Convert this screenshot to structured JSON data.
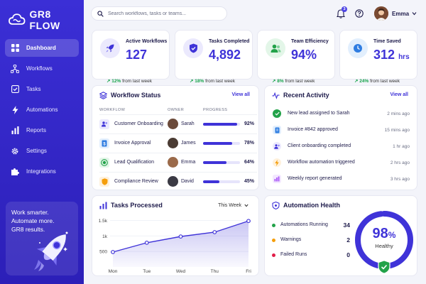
{
  "app": {
    "name": "GR8 FLOW",
    "accent": "#3f33d8"
  },
  "sidebar": {
    "items": [
      {
        "label": "Dashboard",
        "icon": "dashboard-icon",
        "active": true
      },
      {
        "label": "Workflows",
        "icon": "workflow-icon",
        "active": false
      },
      {
        "label": "Tasks",
        "icon": "checkbox-icon",
        "active": false
      },
      {
        "label": "Automations",
        "icon": "lightning-icon",
        "active": false
      },
      {
        "label": "Reports",
        "icon": "bar-chart-icon",
        "active": false
      },
      {
        "label": "Settings",
        "icon": "gear-icon",
        "active": false
      },
      {
        "label": "Integrations",
        "icon": "puzzle-icon",
        "active": false
      }
    ],
    "promo": {
      "line1": "Work smarter.",
      "line2": "Automate more.",
      "line3": "GR8 results."
    }
  },
  "topbar": {
    "search_placeholder": "Search workflows, tasks or teams...",
    "notifications_count": "3",
    "user_name": "Emma"
  },
  "stats": [
    {
      "label": "Active Workflows",
      "value": "127",
      "unit": "",
      "delta": "12%",
      "delta_suffix": "from last week",
      "icon": "rocket-icon",
      "icon_bg": "#ebe9fd",
      "icon_color": "#3f33d8"
    },
    {
      "label": "Tasks Completed",
      "value": "4,892",
      "unit": "",
      "delta": "18%",
      "delta_suffix": "from last week",
      "icon": "shield-check-icon",
      "icon_bg": "#ebe9fd",
      "icon_color": "#3f33d8"
    },
    {
      "label": "Team Efficiency",
      "value": "94%",
      "unit": "",
      "delta": "8%",
      "delta_suffix": "from last week",
      "icon": "team-icon",
      "icon_bg": "#e3f6e8",
      "icon_color": "#22a249"
    },
    {
      "label": "Time Saved",
      "value": "312",
      "unit": "hrs",
      "delta": "24%",
      "delta_suffix": "from last week",
      "icon": "clock-icon",
      "icon_bg": "#e2effd",
      "icon_color": "#2f7de1"
    }
  ],
  "workflow_status": {
    "title": "Workflow Status",
    "view_all": "View all",
    "columns": [
      "WORKFLOW",
      "OWNER",
      "PROGRESS"
    ],
    "rows": [
      {
        "name": "Customer Onboarding",
        "owner": "Sarah",
        "progress": 0.92,
        "pct": "92%",
        "icon_bg": "#ebe9fd",
        "icon_color": "#3f33d8",
        "avatar_color": "#6b4a3a"
      },
      {
        "name": "Invoice Approval",
        "owner": "James",
        "progress": 0.78,
        "pct": "78%",
        "icon_bg": "#e2effd",
        "icon_color": "#2f7de1",
        "avatar_color": "#4a3b33"
      },
      {
        "name": "Lead Qualification",
        "owner": "Emma",
        "progress": 0.64,
        "pct": "64%",
        "icon_bg": "#e3f6e8",
        "icon_color": "#22a249",
        "avatar_color": "#9b6a4a"
      },
      {
        "name": "Compliance Review",
        "owner": "David",
        "progress": 0.45,
        "pct": "45%",
        "icon_bg": "#fff1dc",
        "icon_color": "#f59e0b",
        "avatar_color": "#3b3a44"
      }
    ]
  },
  "recent_activity": {
    "title": "Recent Activity",
    "view_all": "View all",
    "items": [
      {
        "text": "New lead assigned to Sarah",
        "time": "2 mins ago",
        "icon": "check-circle-icon",
        "color": "#22a249",
        "bg": "#22a249"
      },
      {
        "text": "Invoice #842 approved",
        "time": "15 mins ago",
        "icon": "document-icon",
        "color": "#2f7de1",
        "bg": "#e2effd"
      },
      {
        "text": "Client onboarding completed",
        "time": "1 hr ago",
        "icon": "users-icon",
        "color": "#3f33d8",
        "bg": "#ebe9fd"
      },
      {
        "text": "Workflow automation triggered",
        "time": "2 hrs ago",
        "icon": "lightning-icon",
        "color": "#f59e0b",
        "bg": "#fff1dc"
      },
      {
        "text": "Weekly report generated",
        "time": "3 hrs ago",
        "icon": "report-icon",
        "color": "#a855f7",
        "bg": "#f3e8ff"
      }
    ]
  },
  "tasks_processed": {
    "title": "Tasks Processed",
    "period": "This Week"
  },
  "chart_data": {
    "type": "area",
    "categories": [
      "Mon",
      "Tue",
      "Wed",
      "Thu",
      "Fri"
    ],
    "values": [
      480,
      780,
      980,
      1120,
      1480
    ],
    "yticks": [
      "500",
      "1k",
      "1.5k"
    ],
    "ytick_values": [
      500,
      1000,
      1500
    ],
    "ylim": [
      0,
      1600
    ],
    "grid": true,
    "color": "#3f33d8"
  },
  "automation_health": {
    "title": "Automation Health",
    "rows": [
      {
        "label": "Automations Running",
        "value": "34",
        "color": "#22a249"
      },
      {
        "label": "Warnings",
        "value": "2",
        "color": "#f59e0b"
      },
      {
        "label": "Failed Runs",
        "value": "0",
        "color": "#e11d48"
      }
    ],
    "score": "98",
    "score_unit": "%",
    "score_fraction": 0.98,
    "score_label": "Healthy"
  }
}
